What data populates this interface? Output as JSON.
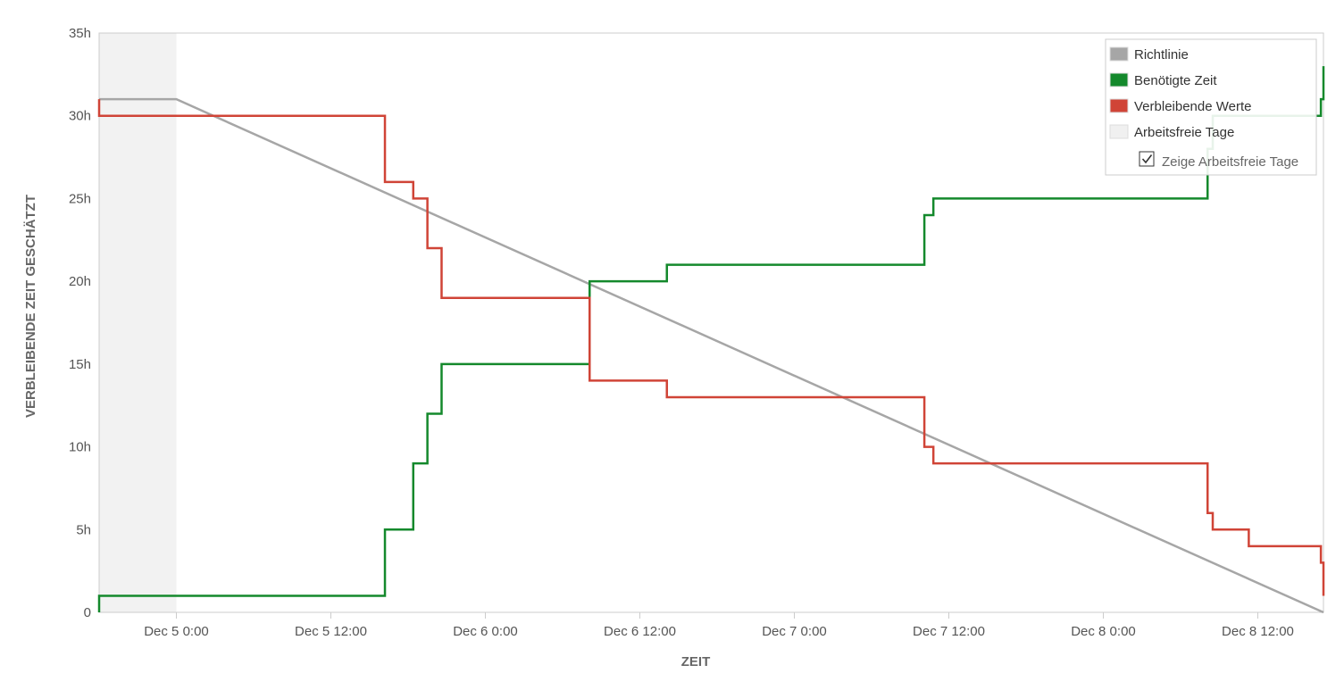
{
  "chart_data": {
    "type": "line",
    "xlabel": "ZEIT",
    "ylabel": "VERBLEIBENDE ZEIT GESCHÄTZT",
    "x_unit": "hours",
    "xlim": [
      "Dec 4 18:00",
      "Dec 8 17:06"
    ],
    "xlim_hours": [
      -6,
      89.1
    ],
    "ylim": [
      0,
      35
    ],
    "y_ticks": [
      0,
      5,
      10,
      15,
      20,
      25,
      30,
      35
    ],
    "y_tick_labels": [
      "0",
      "5h",
      "10h",
      "15h",
      "20h",
      "25h",
      "30h",
      "35h"
    ],
    "x_ticks_hours": [
      0,
      12,
      24,
      36,
      48,
      60,
      72,
      84
    ],
    "x_tick_labels": [
      "Dec 5 0:00",
      "Dec 5 12:00",
      "Dec 6 0:00",
      "Dec 6 12:00",
      "Dec 7 0:00",
      "Dec 7 12:00",
      "Dec 8 0:00",
      "Dec 8 12:00"
    ],
    "grid": false,
    "legend_position": "top-right",
    "non_working_periods": [
      [
        -6,
        0
      ]
    ],
    "series": [
      {
        "name": "Richtlinie",
        "color": "#a6a6a6",
        "style": "line",
        "points": [
          [
            -6,
            31
          ],
          [
            0,
            31
          ],
          [
            89.1,
            0
          ]
        ]
      },
      {
        "name": "Benötigte Zeit",
        "color": "#14892c",
        "style": "step",
        "points": [
          [
            -6,
            0
          ],
          [
            -6,
            1
          ],
          [
            16.2,
            1
          ],
          [
            16.2,
            5
          ],
          [
            18.4,
            5
          ],
          [
            18.4,
            9
          ],
          [
            19.5,
            9
          ],
          [
            19.5,
            12
          ],
          [
            20.6,
            12
          ],
          [
            20.6,
            15
          ],
          [
            32.1,
            15
          ],
          [
            32.1,
            20
          ],
          [
            38.1,
            20
          ],
          [
            38.1,
            21
          ],
          [
            58.1,
            21
          ],
          [
            58.1,
            24
          ],
          [
            58.8,
            24
          ],
          [
            58.8,
            25
          ],
          [
            80.1,
            25
          ],
          [
            80.1,
            28
          ],
          [
            80.5,
            28
          ],
          [
            80.5,
            30
          ],
          [
            84,
            30
          ],
          [
            88.9,
            30
          ],
          [
            88.9,
            31
          ],
          [
            89.1,
            31
          ],
          [
            89.1,
            33
          ]
        ]
      },
      {
        "name": "Verbleibende Werte",
        "color": "#d04437",
        "style": "step",
        "points": [
          [
            -6,
            31
          ],
          [
            -6,
            30
          ],
          [
            16.2,
            30
          ],
          [
            16.2,
            26
          ],
          [
            18.4,
            26
          ],
          [
            18.4,
            25
          ],
          [
            19.5,
            25
          ],
          [
            19.5,
            22
          ],
          [
            20.6,
            22
          ],
          [
            20.6,
            19
          ],
          [
            32.1,
            19
          ],
          [
            32.1,
            14
          ],
          [
            38.1,
            14
          ],
          [
            38.1,
            13
          ],
          [
            58.1,
            13
          ],
          [
            58.1,
            10
          ],
          [
            58.8,
            10
          ],
          [
            58.8,
            9
          ],
          [
            80.1,
            9
          ],
          [
            80.1,
            6
          ],
          [
            80.5,
            6
          ],
          [
            80.5,
            5
          ],
          [
            83.3,
            5
          ],
          [
            83.3,
            4
          ],
          [
            88.9,
            4
          ],
          [
            88.9,
            3
          ],
          [
            89.1,
            3
          ],
          [
            89.1,
            1
          ]
        ]
      }
    ],
    "legend": {
      "items": [
        {
          "label": "Richtlinie",
          "color": "#a6a6a6"
        },
        {
          "label": "Benötigte Zeit",
          "color": "#14892c"
        },
        {
          "label": "Verbleibende Werte",
          "color": "#d04437"
        },
        {
          "label": "Arbeitsfreie Tage",
          "color": "#f0f0f0"
        }
      ],
      "toggle_label": "Zeige Arbeitsfreie Tage",
      "toggle_checked": true
    }
  }
}
